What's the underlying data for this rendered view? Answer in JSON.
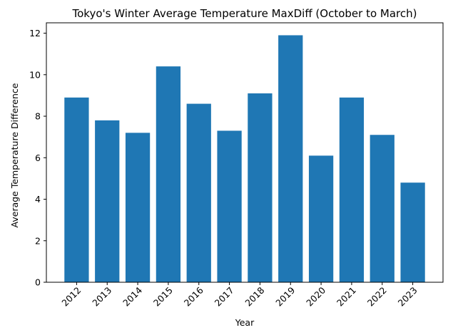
{
  "chart_data": {
    "type": "bar",
    "title": "Tokyo's Winter Average Temperature MaxDiff (October to March)",
    "xlabel": "Year",
    "ylabel": "Average Temperature Difference",
    "categories": [
      "2012",
      "2013",
      "2014",
      "2015",
      "2016",
      "2017",
      "2018",
      "2019",
      "2020",
      "2021",
      "2022",
      "2023"
    ],
    "values": [
      8.9,
      7.8,
      7.2,
      10.4,
      8.6,
      7.3,
      9.1,
      11.9,
      6.1,
      8.9,
      7.1,
      4.8
    ],
    "ylim": [
      0,
      12.5
    ],
    "yticks": [
      0,
      2,
      4,
      6,
      8,
      10,
      12
    ],
    "bar_color": "#1f77b4",
    "grid": false,
    "xtick_rotation": 45
  }
}
